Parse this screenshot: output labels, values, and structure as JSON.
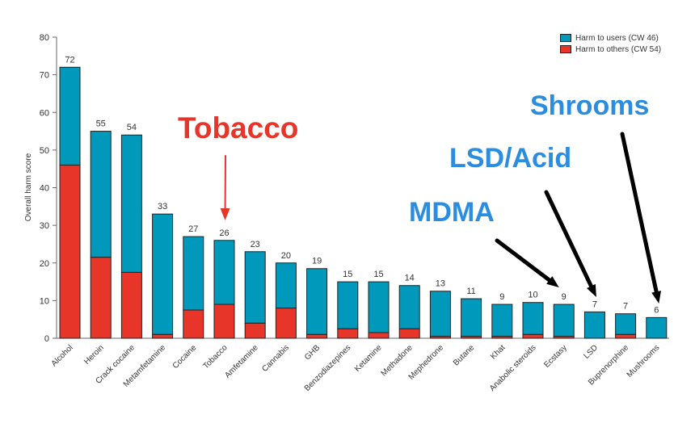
{
  "chart_data": {
    "type": "bar",
    "stacked": true,
    "ylabel": "Overall harm score",
    "xlabel": "",
    "ylim": [
      0,
      80
    ],
    "yticks": [
      0,
      10,
      20,
      30,
      40,
      50,
      60,
      70,
      80
    ],
    "grid": false,
    "legend_position": "top-right",
    "categories": [
      "Alcohol",
      "Heroin",
      "Crack cocaine",
      "Metamfetamine",
      "Cocaine",
      "Tobacco",
      "Amfetamine",
      "Cannabis",
      "GHB",
      "Benzodiazepines",
      "Ketamine",
      "Methadone",
      "Mephedrone",
      "Butane",
      "Khat",
      "Anabolic steroids",
      "Ecstasy",
      "LSD",
      "Buprenorphine",
      "Mushrooms"
    ],
    "totals": [
      72,
      55,
      54,
      33,
      27,
      26,
      23,
      20,
      19,
      15,
      15,
      14,
      13,
      11,
      9,
      10,
      9,
      7,
      7,
      6
    ],
    "series": [
      {
        "name": "Harm to others (CW 54)",
        "color": "#e8352a",
        "values": [
          46,
          21.5,
          17.5,
          1,
          7.5,
          9,
          4,
          8,
          1,
          2.5,
          1.5,
          2.5,
          0.5,
          0.5,
          0.5,
          1,
          0.5,
          0,
          1,
          0
        ]
      },
      {
        "name": "Harm to users (CW 46)",
        "color": "#0099bb",
        "values": [
          26,
          33.5,
          36.5,
          32,
          19.5,
          17,
          19,
          12,
          17.5,
          12.5,
          13.5,
          11.5,
          12,
          10,
          8.5,
          8.5,
          8.5,
          7,
          5.5,
          5.5
        ]
      }
    ]
  },
  "legend": {
    "users": {
      "label": "Harm to users (CW 46)",
      "color": "#0099bb"
    },
    "others": {
      "label": "Harm to others (CW 54)",
      "color": "#e8352a"
    }
  },
  "annotations": [
    {
      "id": "tobacco",
      "text": "Tobacco",
      "color": "#e8352a",
      "target": "Tobacco"
    },
    {
      "id": "mdma",
      "text": "MDMA",
      "color": "#2b8de0",
      "target": "Ecstasy"
    },
    {
      "id": "lsd",
      "text": "LSD/Acid",
      "color": "#2b8de0",
      "target": "LSD"
    },
    {
      "id": "shrooms",
      "text": "Shrooms",
      "color": "#2b8de0",
      "target": "Mushrooms"
    }
  ]
}
